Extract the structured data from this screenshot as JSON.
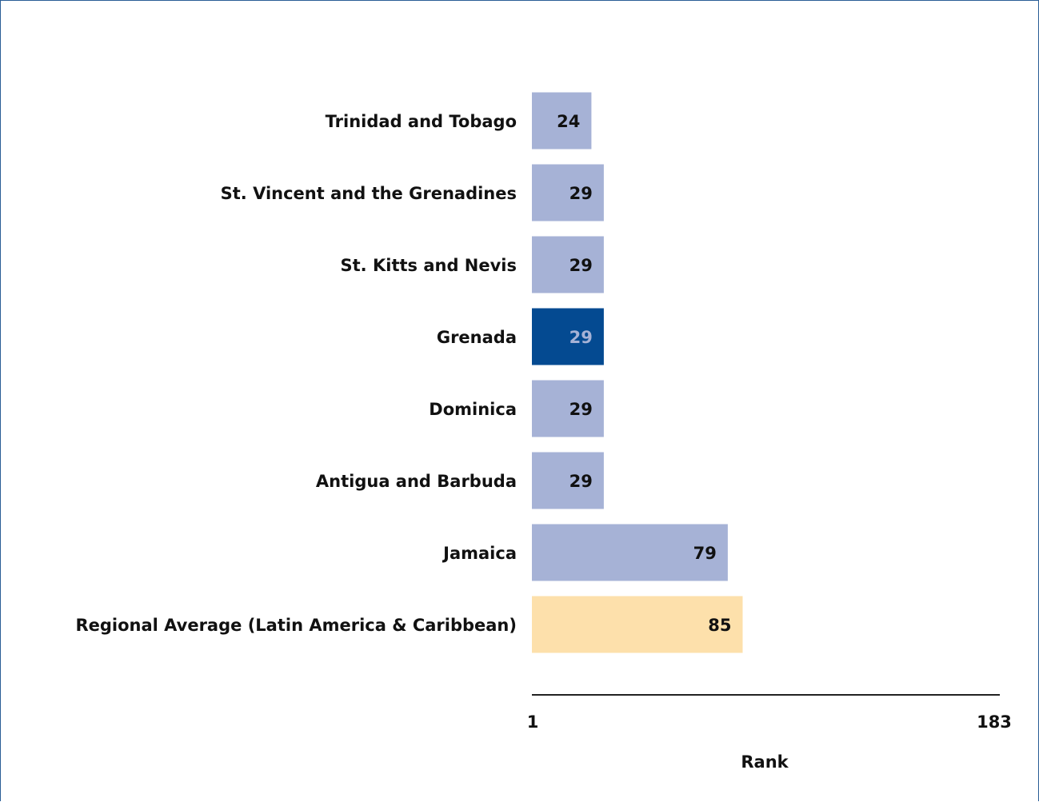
{
  "chart_data": {
    "type": "bar",
    "orientation": "horizontal",
    "categories": [
      "Trinidad and Tobago",
      "St. Vincent and the Grenadines",
      "St. Kitts and Nevis",
      "Grenada",
      "Dominica",
      "Antigua and Barbuda",
      "Jamaica",
      "Regional Average (Latin America & Caribbean)"
    ],
    "values": [
      24,
      29,
      29,
      29,
      29,
      29,
      79,
      85
    ],
    "highlight": [
      "default",
      "default",
      "default",
      "focus",
      "default",
      "default",
      "default",
      "regional"
    ],
    "xlabel": "Rank",
    "ylabel": "",
    "xlim": [
      1,
      183
    ],
    "x_tick_labels": [
      "1",
      "183"
    ],
    "grid": false,
    "colors": {
      "default": "#a6b2d6",
      "focus": "#044a91",
      "regional": "#fde0ab",
      "default_text": "#111111",
      "focus_text": "#a6b2d6",
      "regional_text": "#111111",
      "axis": "#222222",
      "frame": "#2a5d96"
    }
  }
}
